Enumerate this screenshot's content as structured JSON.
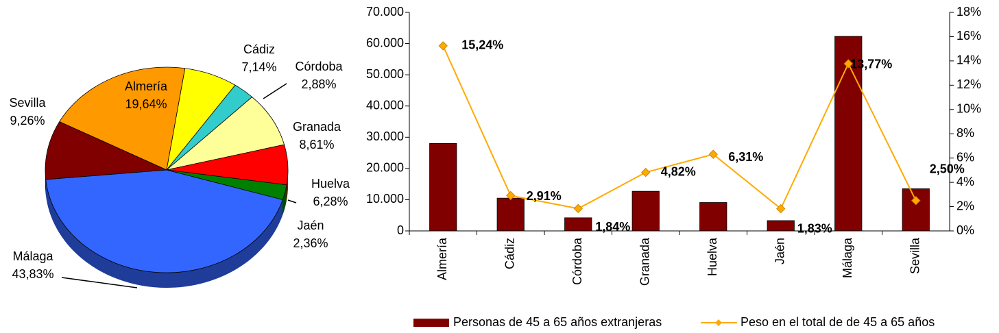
{
  "chart_data": [
    {
      "type": "pie",
      "categories": [
        "Almería",
        "Cádiz",
        "Córdoba",
        "Granada",
        "Huelva",
        "Jaén",
        "Málaga",
        "Sevilla"
      ],
      "values": [
        19.64,
        7.14,
        2.88,
        8.61,
        6.28,
        2.36,
        43.83,
        9.26
      ],
      "value_labels": [
        "19,64%",
        "7,14%",
        "2,88%",
        "8,61%",
        "6,28%",
        "2,36%",
        "43,83%",
        "9,26%"
      ],
      "colors": [
        "#ff9900",
        "#ffff00",
        "#33cccc",
        "#ffff99",
        "#ff0000",
        "#008000",
        "#3366ff",
        "#800000"
      ]
    },
    {
      "type": "bar",
      "categories": [
        "Almería",
        "Cádiz",
        "Córdoba",
        "Granada",
        "Huelva",
        "Jaén",
        "Málaga",
        "Sevilla"
      ],
      "series": [
        {
          "name": "Personas de 45 a 65 años extranjeras",
          "color": "#800000",
          "values": [
            28000,
            10500,
            4200,
            12700,
            9100,
            3300,
            62300,
            13500
          ]
        },
        {
          "name": "Peso en el total de de 45 a 65 años",
          "color": "#ffaa00",
          "axis": "y2",
          "type": "line",
          "values": [
            15.24,
            2.91,
            1.84,
            4.82,
            6.31,
            1.83,
            13.77,
            2.5
          ],
          "value_labels": [
            "15,24%",
            "2,91%",
            "1,84%",
            "4,82%",
            "6,31%",
            "1,83%",
            "13,77%",
            "2,50%"
          ]
        }
      ],
      "ylim": [
        0,
        70000
      ],
      "yticks": [
        0,
        {
          "value": 10000,
          "label": "10.000"
        },
        {
          "value": 20000,
          "label": "20.000"
        },
        {
          "value": 30000,
          "label": "30.000"
        },
        {
          "value": 40000,
          "label": "40.000"
        },
        {
          "value": 50000,
          "label": "50.000"
        },
        {
          "value": 60000,
          "label": "60.000"
        },
        {
          "value": 70000,
          "label": "70.000"
        }
      ],
      "y2lim": [
        0,
        18
      ],
      "y2ticks": [
        {
          "value": 0,
          "label": "0%"
        },
        {
          "value": 2,
          "label": "2%"
        },
        {
          "value": 4,
          "label": "4%"
        },
        {
          "value": 6,
          "label": "6%"
        },
        {
          "value": 8,
          "label": "8%"
        },
        {
          "value": 10,
          "label": "10%"
        },
        {
          "value": 12,
          "label": "12%"
        },
        {
          "value": 14,
          "label": "14%"
        },
        {
          "value": 16,
          "label": "16%"
        },
        {
          "value": 18,
          "label": "18%"
        }
      ],
      "legend": "bottom"
    }
  ]
}
